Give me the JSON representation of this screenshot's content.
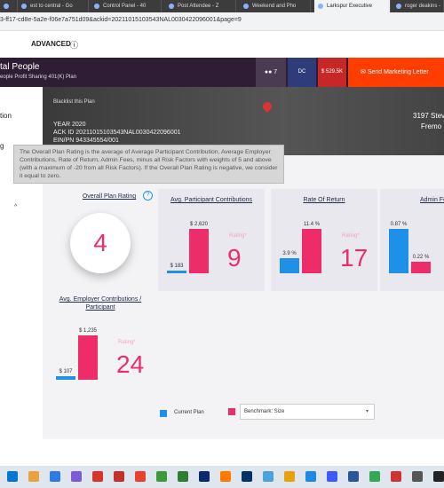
{
  "browser": {
    "tabs": [
      "est to central - Go",
      "Control Panel - 40",
      "Post Attendee - Z",
      "Weekend and Pho",
      "Larkspur Executive",
      "roger deakins -"
    ],
    "url": "3-ff17-cd8e-5a2e-f06e7a751d09&ackid=20211015103543NAL0030422096001&page=9"
  },
  "toolbar": {
    "label": "ADVANCED"
  },
  "header": {
    "title": "tal People",
    "subtitle": "eople Profit Sharing 401(K) Plan",
    "participants": "7",
    "type": "DC",
    "assets": "$ 529.5K",
    "button": "Send Marketing Letter"
  },
  "plan": {
    "blacklist": "Blacklist this Plan",
    "year": "YEAR 2020",
    "ack": "ACK ID 20211015103543NAL0030422096001",
    "ein": "EIN/PN 943345554/001",
    "address": "3197 Stev",
    "city": "Fremo"
  },
  "sidebar": [
    "tion",
    "g"
  ],
  "tooltip": "The Overall Plan Rating is the average of Average Participant Contribution, Average Employer Contributions, Rate of Return, Admin Fees, minus all Risk Factors with weights of 5 and above (with a maximum of -20 from all Risk Factors). If the Overall Plan Rating is negative, we consider it equal to zero.",
  "overall": {
    "title": "Overall Plan Rating",
    "rating": "4"
  },
  "metrics": [
    {
      "title": "Avg. Participant Contributions",
      "values": [
        183,
        2620
      ],
      "value_labels": [
        "$ 183",
        "$ 2,620"
      ],
      "rating_label": "Rating*",
      "rating": "9"
    },
    {
      "title": "Rate Of Return",
      "values": [
        3.9,
        11.4
      ],
      "value_labels": [
        "3.9 %",
        "11.4 %"
      ],
      "rating_label": "Rating*",
      "rating": "17"
    },
    {
      "title": "Admin Fe",
      "values": [
        0.87,
        0.22
      ],
      "value_labels": [
        "0.87 %",
        "0.22 %"
      ]
    },
    {
      "title": "Avg. Employer Contributions / Participant",
      "values": [
        107,
        1235
      ],
      "value_labels": [
        "$ 107",
        "$ 1,235"
      ],
      "rating_label": "Rating*",
      "rating": "24"
    }
  ],
  "legend": {
    "current": "Current Plan",
    "benchmark": "Benchmark: Size"
  }
}
